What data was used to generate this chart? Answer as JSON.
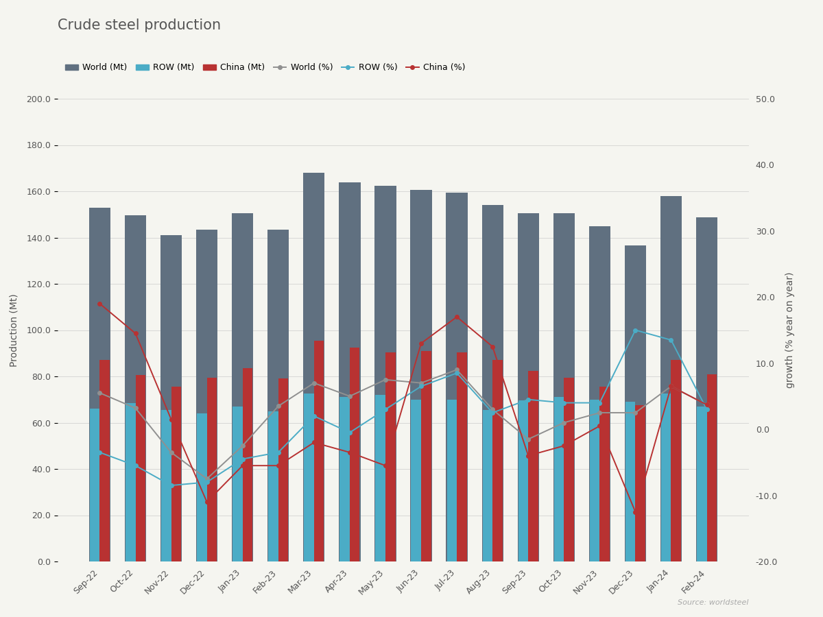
{
  "title": "Crude steel production",
  "months": [
    "Sep-22",
    "Oct-22",
    "Nov-22",
    "Dec-22",
    "Jan-23",
    "Feb-23",
    "Mar-23",
    "Apr-23",
    "May-23",
    "Jun-23",
    "Jul-23",
    "Aug-23",
    "Sep-23",
    "Oct-23",
    "Nov-23",
    "Dec-23",
    "Jan-24",
    "Feb-24"
  ],
  "world_mt": [
    153.0,
    149.5,
    141.0,
    143.5,
    150.5,
    143.5,
    168.0,
    164.0,
    162.5,
    160.5,
    159.5,
    154.0,
    150.5,
    150.5,
    145.0,
    136.5,
    158.0,
    148.8
  ],
  "row_mt": [
    66.0,
    68.5,
    65.5,
    64.0,
    67.0,
    65.0,
    72.5,
    71.0,
    72.0,
    70.0,
    70.0,
    65.5,
    69.5,
    71.0,
    70.0,
    69.0,
    72.5,
    67.0
  ],
  "china_mt": [
    87.0,
    80.5,
    75.5,
    79.5,
    83.5,
    79.0,
    95.5,
    92.5,
    90.5,
    91.0,
    90.5,
    87.0,
    82.5,
    79.5,
    75.5,
    67.5,
    87.0,
    81.0
  ],
  "world_pct": [
    5.5,
    3.2,
    -3.5,
    -7.5,
    -2.5,
    3.5,
    7.0,
    5.0,
    7.5,
    7.0,
    9.0,
    3.0,
    -1.5,
    1.0,
    2.5,
    2.5,
    6.5,
    3.7
  ],
  "row_pct": [
    -3.5,
    -5.5,
    -8.5,
    -8.0,
    -4.5,
    -3.5,
    2.0,
    -0.5,
    3.0,
    6.5,
    8.5,
    2.5,
    4.5,
    4.0,
    4.0,
    15.0,
    13.5,
    3.0
  ],
  "china_pct": [
    19.0,
    14.5,
    1.5,
    -11.0,
    -5.5,
    -5.5,
    -2.0,
    -3.5,
    -5.5,
    13.0,
    17.0,
    12.5,
    -4.0,
    -2.5,
    0.5,
    -12.5,
    6.5,
    3.7
  ],
  "color_world_bar": "#607080",
  "color_row_bar": "#4bacc6",
  "color_china_bar": "#b83232",
  "color_world_line": "#909090",
  "color_row_line": "#4bacc6",
  "color_china_line": "#b83232",
  "ylabel_left": "Production (Mt)",
  "ylabel_right": "growth (% year on year)",
  "ylim_left": [
    0.0,
    200.0
  ],
  "ylim_right": [
    -20.0,
    50.0
  ],
  "yticks_left": [
    0.0,
    20.0,
    40.0,
    60.0,
    80.0,
    100.0,
    120.0,
    140.0,
    160.0,
    180.0,
    200.0
  ],
  "yticks_right": [
    -20.0,
    -10.0,
    0.0,
    10.0,
    20.0,
    30.0,
    40.0,
    50.0
  ],
  "source_text": "Source: worldsteel",
  "background_color": "#f5f5f0"
}
